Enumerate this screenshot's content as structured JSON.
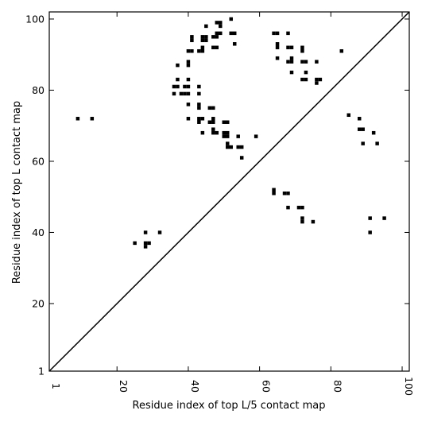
{
  "chart_data": {
    "type": "scatter",
    "title": "",
    "xlabel": "Residue index of top L/5 contact map",
    "ylabel": "Residue index of top L contact map",
    "xlim": [
      1,
      102
    ],
    "ylim": [
      1,
      102
    ],
    "x_ticks": [
      1,
      20,
      40,
      60,
      80,
      100
    ],
    "y_ticks": [
      1,
      20,
      40,
      60,
      80,
      100
    ],
    "grid": false,
    "diagonal": true,
    "marker_color": "#000000",
    "series": [
      {
        "points": [
          [
            9,
            72
          ],
          [
            13,
            72
          ],
          [
            25,
            37
          ],
          [
            28,
            40
          ],
          [
            28,
            37
          ],
          [
            28,
            36
          ],
          [
            29,
            37
          ],
          [
            32,
            40
          ],
          [
            36,
            81
          ],
          [
            36,
            79
          ],
          [
            37,
            87
          ],
          [
            37,
            83
          ],
          [
            37,
            81
          ],
          [
            38,
            79
          ],
          [
            39,
            81
          ],
          [
            39,
            79
          ],
          [
            40,
            88
          ],
          [
            40,
            87
          ],
          [
            40,
            83
          ],
          [
            40,
            81
          ],
          [
            40,
            79
          ],
          [
            40,
            76
          ],
          [
            40,
            72
          ],
          [
            40,
            91
          ],
          [
            41,
            91
          ],
          [
            41,
            94
          ],
          [
            41,
            95
          ],
          [
            43,
            91
          ],
          [
            43,
            81
          ],
          [
            43,
            79
          ],
          [
            43,
            76
          ],
          [
            43,
            75
          ],
          [
            43,
            72
          ],
          [
            43,
            71
          ],
          [
            44,
            72
          ],
          [
            44,
            68
          ],
          [
            44,
            91
          ],
          [
            44,
            92
          ],
          [
            44,
            94
          ],
          [
            44,
            95
          ],
          [
            45,
            94
          ],
          [
            45,
            95
          ],
          [
            45,
            98
          ],
          [
            46,
            75
          ],
          [
            46,
            71
          ],
          [
            47,
            75
          ],
          [
            47,
            72
          ],
          [
            47,
            71
          ],
          [
            47,
            69
          ],
          [
            47,
            68
          ],
          [
            47,
            92
          ],
          [
            47,
            95
          ],
          [
            48,
            92
          ],
          [
            48,
            95
          ],
          [
            48,
            96
          ],
          [
            48,
            68
          ],
          [
            48,
            99
          ],
          [
            49,
            99
          ],
          [
            49,
            98
          ],
          [
            49,
            96
          ],
          [
            50,
            71
          ],
          [
            50,
            68
          ],
          [
            50,
            67
          ],
          [
            51,
            71
          ],
          [
            51,
            68
          ],
          [
            51,
            67
          ],
          [
            51,
            65
          ],
          [
            51,
            64
          ],
          [
            52,
            64
          ],
          [
            52,
            100
          ],
          [
            52,
            96
          ],
          [
            53,
            96
          ],
          [
            53,
            93
          ],
          [
            54,
            67
          ],
          [
            54,
            64
          ],
          [
            55,
            64
          ],
          [
            55,
            61
          ],
          [
            59,
            67
          ],
          [
            64,
            52
          ],
          [
            64,
            51
          ],
          [
            64,
            96
          ],
          [
            65,
            96
          ],
          [
            65,
            93
          ],
          [
            65,
            92
          ],
          [
            65,
            89
          ],
          [
            67,
            51
          ],
          [
            68,
            51
          ],
          [
            68,
            47
          ],
          [
            68,
            96
          ],
          [
            68,
            92
          ],
          [
            68,
            88
          ],
          [
            69,
            92
          ],
          [
            69,
            89
          ],
          [
            69,
            88
          ],
          [
            69,
            85
          ],
          [
            71,
            47
          ],
          [
            72,
            47
          ],
          [
            72,
            44
          ],
          [
            72,
            43
          ],
          [
            72,
            92
          ],
          [
            72,
            91
          ],
          [
            72,
            88
          ],
          [
            72,
            83
          ],
          [
            73,
            88
          ],
          [
            73,
            85
          ],
          [
            73,
            83
          ],
          [
            75,
            43
          ],
          [
            76,
            88
          ],
          [
            76,
            83
          ],
          [
            76,
            82
          ],
          [
            77,
            83
          ],
          [
            83,
            91
          ],
          [
            85,
            73
          ],
          [
            88,
            72
          ],
          [
            88,
            69
          ],
          [
            89,
            69
          ],
          [
            89,
            65
          ],
          [
            91,
            44
          ],
          [
            91,
            40
          ],
          [
            92,
            68
          ],
          [
            93,
            65
          ],
          [
            95,
            44
          ]
        ]
      }
    ]
  }
}
